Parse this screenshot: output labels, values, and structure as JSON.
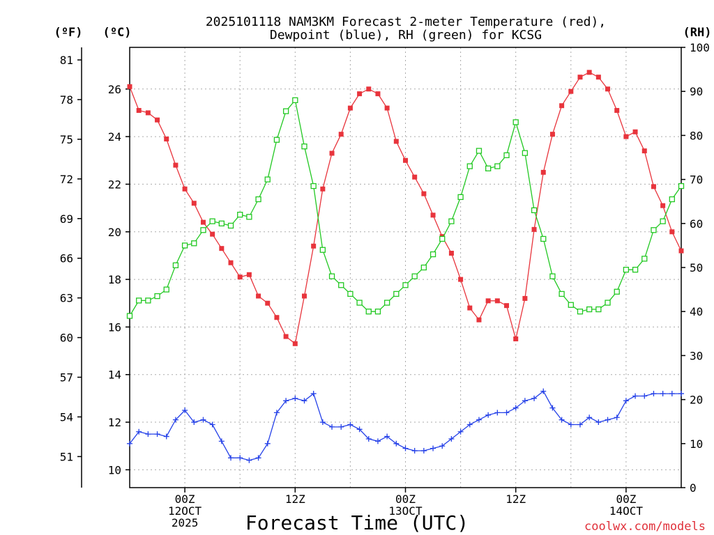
{
  "chart_data": {
    "type": "line",
    "title": [
      "2025101118 NAM3KM Forecast 2-meter Temperature (red),",
      "Dewpoint (blue), RH (green) for KCSG"
    ],
    "xlabel": "Forecast Time (UTC)",
    "credit": "coolwx.com/models",
    "units": {
      "fahrenheit": "(ºF)",
      "celsius": "(ºC)",
      "rh": "(RH)"
    },
    "x_hours": [
      0,
      1,
      2,
      3,
      4,
      5,
      6,
      7,
      8,
      9,
      10,
      11,
      12,
      13,
      14,
      15,
      16,
      17,
      18,
      19,
      20,
      21,
      22,
      23,
      24,
      25,
      26,
      27,
      28,
      29,
      30,
      31,
      32,
      33,
      34,
      35,
      36,
      37,
      38,
      39,
      40,
      41,
      42,
      43,
      44,
      45,
      46,
      47,
      48,
      49,
      50,
      51,
      52,
      53,
      54,
      55,
      56,
      57,
      58,
      59,
      60
    ],
    "xlim": [
      0,
      60
    ],
    "celsius_ylim": [
      9.25,
      27.75
    ],
    "celsius_ticks": [
      10,
      12,
      14,
      16,
      18,
      20,
      22,
      24,
      26
    ],
    "fahrenheit_ticks": [
      51,
      54,
      57,
      60,
      63,
      66,
      69,
      72,
      75,
      78,
      81
    ],
    "rh_ylim": [
      0,
      100
    ],
    "rh_ticks": [
      0,
      10,
      20,
      30,
      40,
      50,
      60,
      70,
      80,
      90,
      100
    ],
    "x_ticks": [
      {
        "hour": 6,
        "lines": [
          "00Z",
          "12OCT",
          "2025"
        ]
      },
      {
        "hour": 18,
        "lines": [
          "12Z"
        ]
      },
      {
        "hour": 30,
        "lines": [
          "00Z",
          "13OCT"
        ]
      },
      {
        "hour": 42,
        "lines": [
          "12Z"
        ]
      },
      {
        "hour": 54,
        "lines": [
          "00Z",
          "14OCT"
        ]
      }
    ],
    "series": [
      {
        "name": "Temperature",
        "color": "#e8343c",
        "marker": "filled-square",
        "axis": "celsius",
        "values": [
          26.1,
          25.1,
          25.0,
          24.7,
          23.9,
          22.8,
          21.8,
          21.2,
          20.4,
          19.9,
          19.3,
          18.7,
          18.1,
          18.2,
          17.3,
          17.0,
          16.4,
          15.6,
          15.3,
          17.3,
          19.4,
          21.8,
          23.3,
          24.1,
          25.2,
          25.8,
          26.0,
          25.8,
          25.2,
          23.8,
          23.0,
          22.3,
          21.6,
          20.7,
          19.8,
          19.1,
          18.0,
          16.8,
          16.3,
          17.1,
          17.1,
          16.9,
          15.5,
          17.2,
          20.1,
          22.5,
          24.1,
          25.3,
          25.9,
          26.5,
          26.7,
          26.5,
          26.0,
          25.1,
          24.0,
          24.2,
          23.4,
          21.9,
          21.1,
          20.0,
          19.2
        ]
      },
      {
        "name": "Dewpoint",
        "color": "#2440e8",
        "marker": "plus",
        "axis": "celsius",
        "values": [
          11.1,
          11.6,
          11.5,
          11.5,
          11.4,
          12.1,
          12.5,
          12.0,
          12.1,
          11.9,
          11.2,
          10.5,
          10.5,
          10.4,
          10.5,
          11.1,
          12.4,
          12.9,
          13.0,
          12.9,
          13.2,
          12.0,
          11.8,
          11.8,
          11.9,
          11.7,
          11.3,
          11.2,
          11.4,
          11.1,
          10.9,
          10.8,
          10.8,
          10.9,
          11.0,
          11.3,
          11.6,
          11.9,
          12.1,
          12.3,
          12.4,
          12.4,
          12.6,
          12.9,
          13.0,
          13.3,
          12.6,
          12.1,
          11.9,
          11.9,
          12.2,
          12.0,
          12.1,
          12.2,
          12.9,
          13.1,
          13.1,
          13.2,
          13.2,
          13.2,
          13.2
        ]
      },
      {
        "name": "RH",
        "color": "#22c822",
        "marker": "open-square",
        "axis": "rh",
        "values": [
          39,
          42.5,
          42.5,
          43.5,
          45,
          50.5,
          55,
          55.5,
          58.5,
          60.5,
          60,
          59.5,
          62,
          61.5,
          65.5,
          70,
          79,
          85.5,
          88,
          77.5,
          68.5,
          54,
          48,
          46,
          44,
          42,
          40,
          40,
          42,
          44,
          46,
          48,
          50,
          53,
          56.5,
          60.5,
          66,
          73,
          76.5,
          72.5,
          73,
          75.5,
          83,
          76,
          63,
          56.5,
          48,
          44,
          41.5,
          40,
          40.5,
          40.5,
          42,
          44.5,
          49.5,
          49.5,
          52,
          58.5,
          60.5,
          65.5,
          68.5
        ]
      }
    ]
  }
}
